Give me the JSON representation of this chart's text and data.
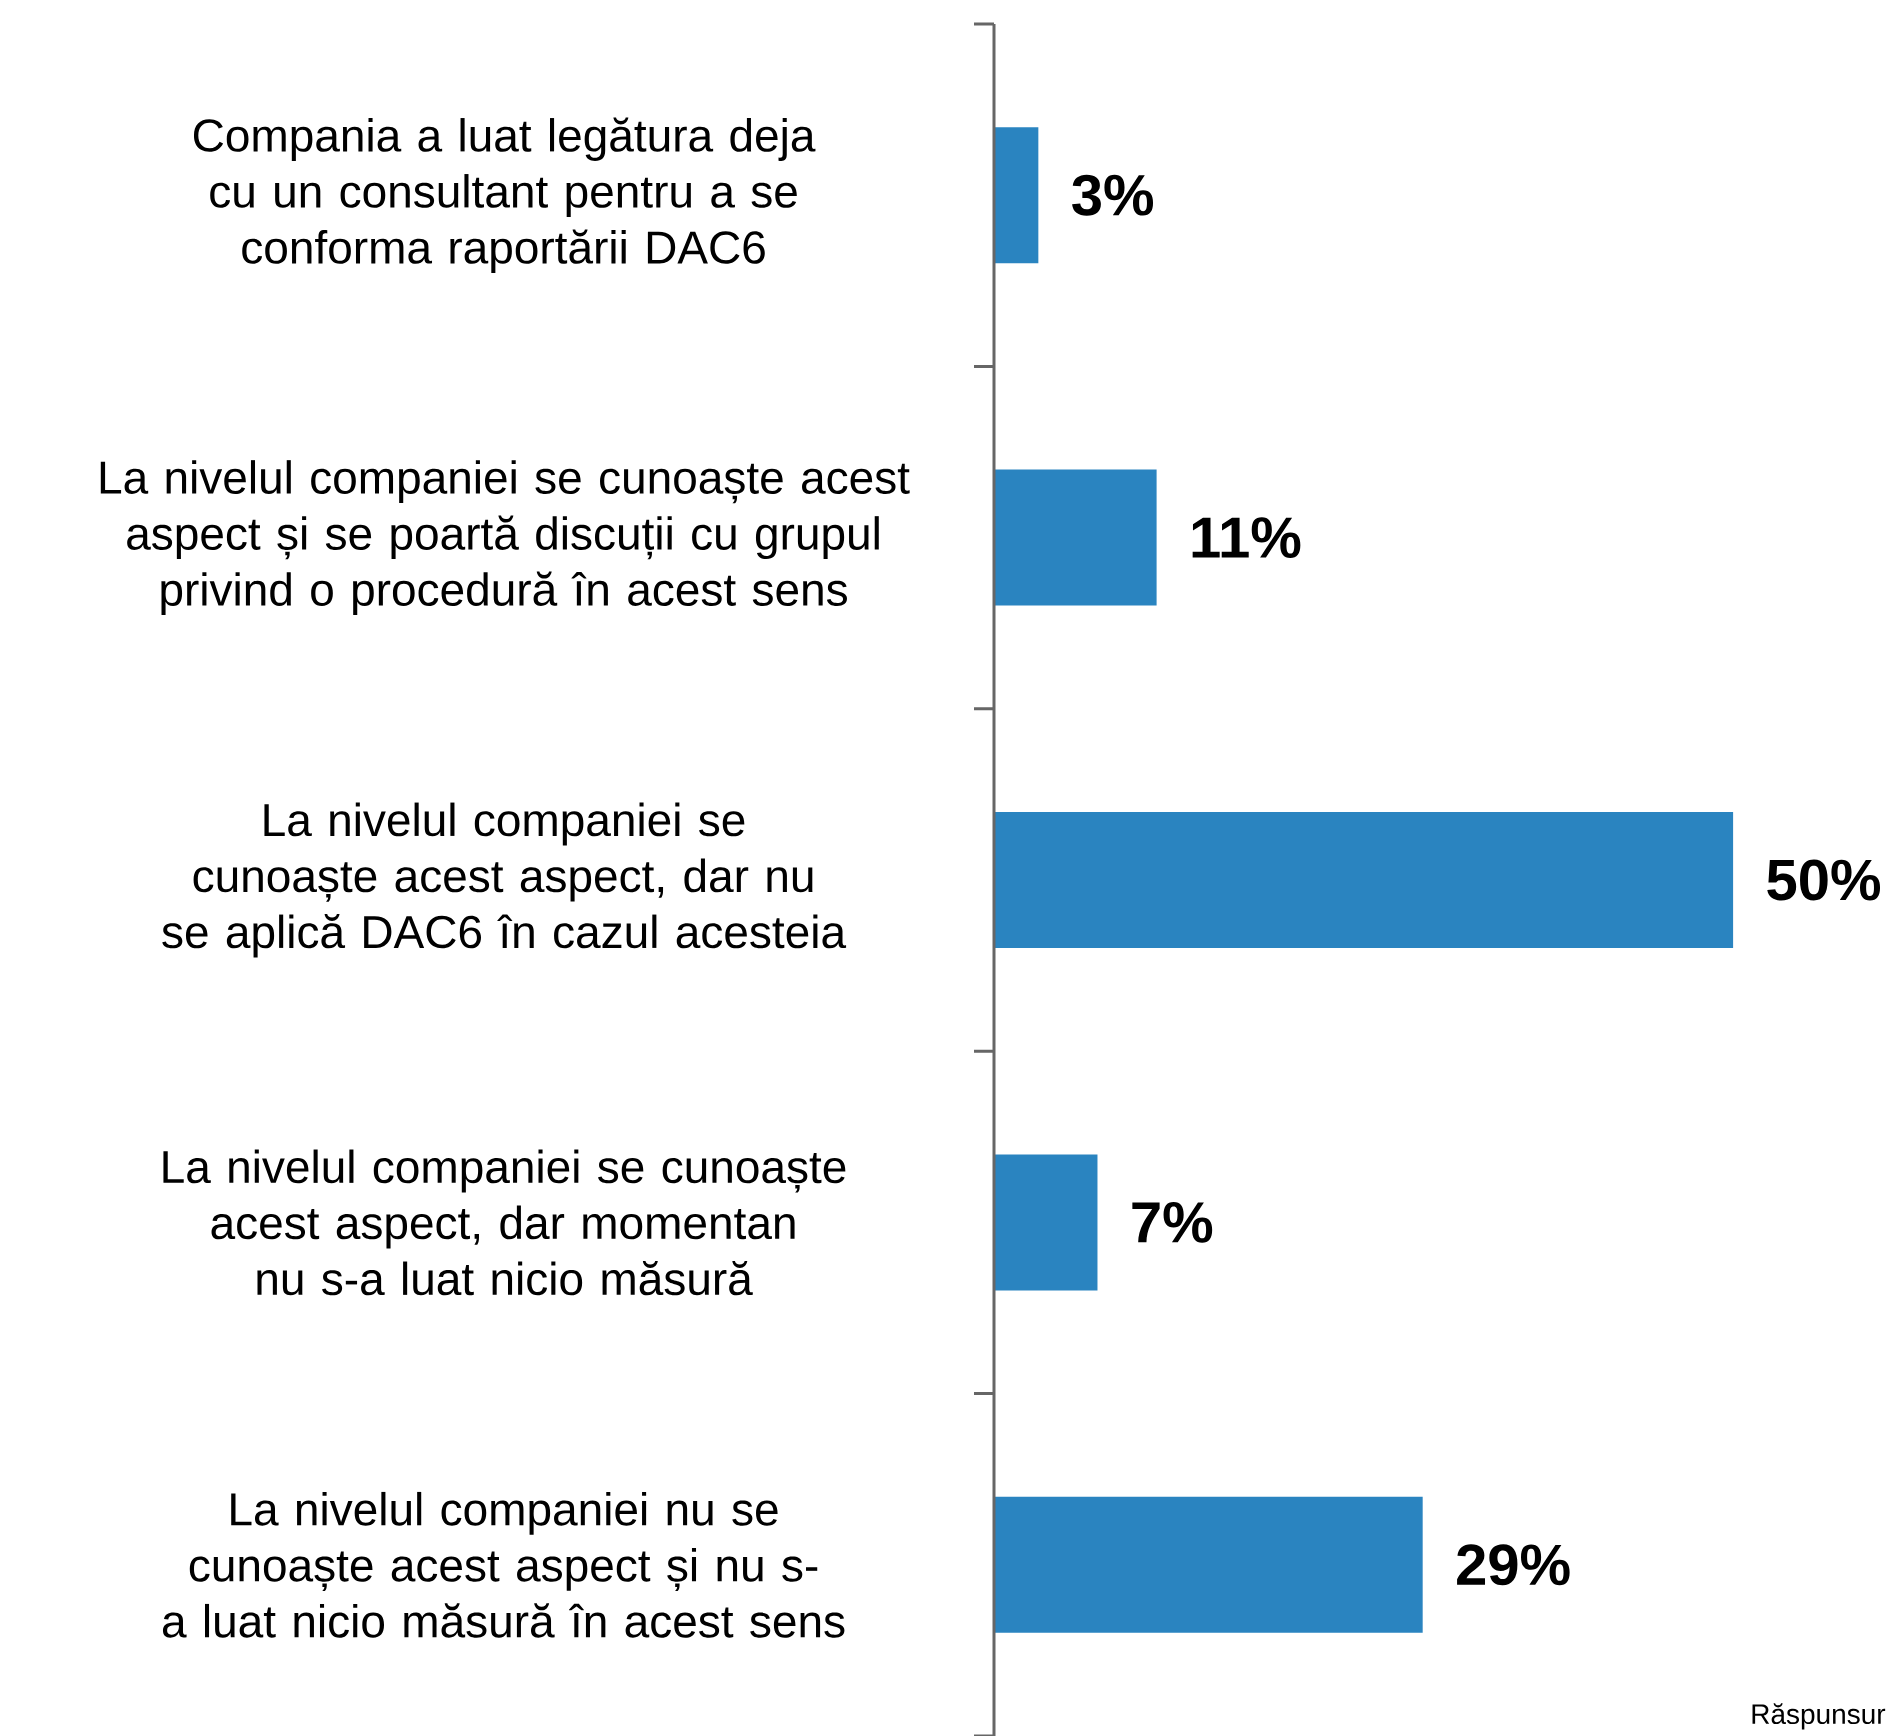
{
  "chart_data": {
    "type": "bar",
    "orientation": "horizontal",
    "categories": [
      "Compania a luat legătura deja cu un consultant pentru a se conforma raportării DAC6",
      "La nivelul companiei se cunoaște acest aspect și se poartă discuții cu grupul privind o procedură în acest sens",
      "La nivelul companiei se cunoaște acest aspect, dar nu se aplică DAC6 în cazul acesteia",
      "La nivelul companiei se cunoaște acest aspect, dar momentan nu s-a luat nicio măsură",
      "La nivelul companiei nu se cunoaște acest aspect și nu s-a luat nicio măsură în acest sens"
    ],
    "values": [
      3,
      11,
      50,
      7,
      29
    ],
    "value_labels": [
      "3%",
      "11%",
      "50%",
      "7%",
      "29%"
    ],
    "color": "#2a84c0",
    "annotations": [
      "Răspunsur"
    ]
  }
}
